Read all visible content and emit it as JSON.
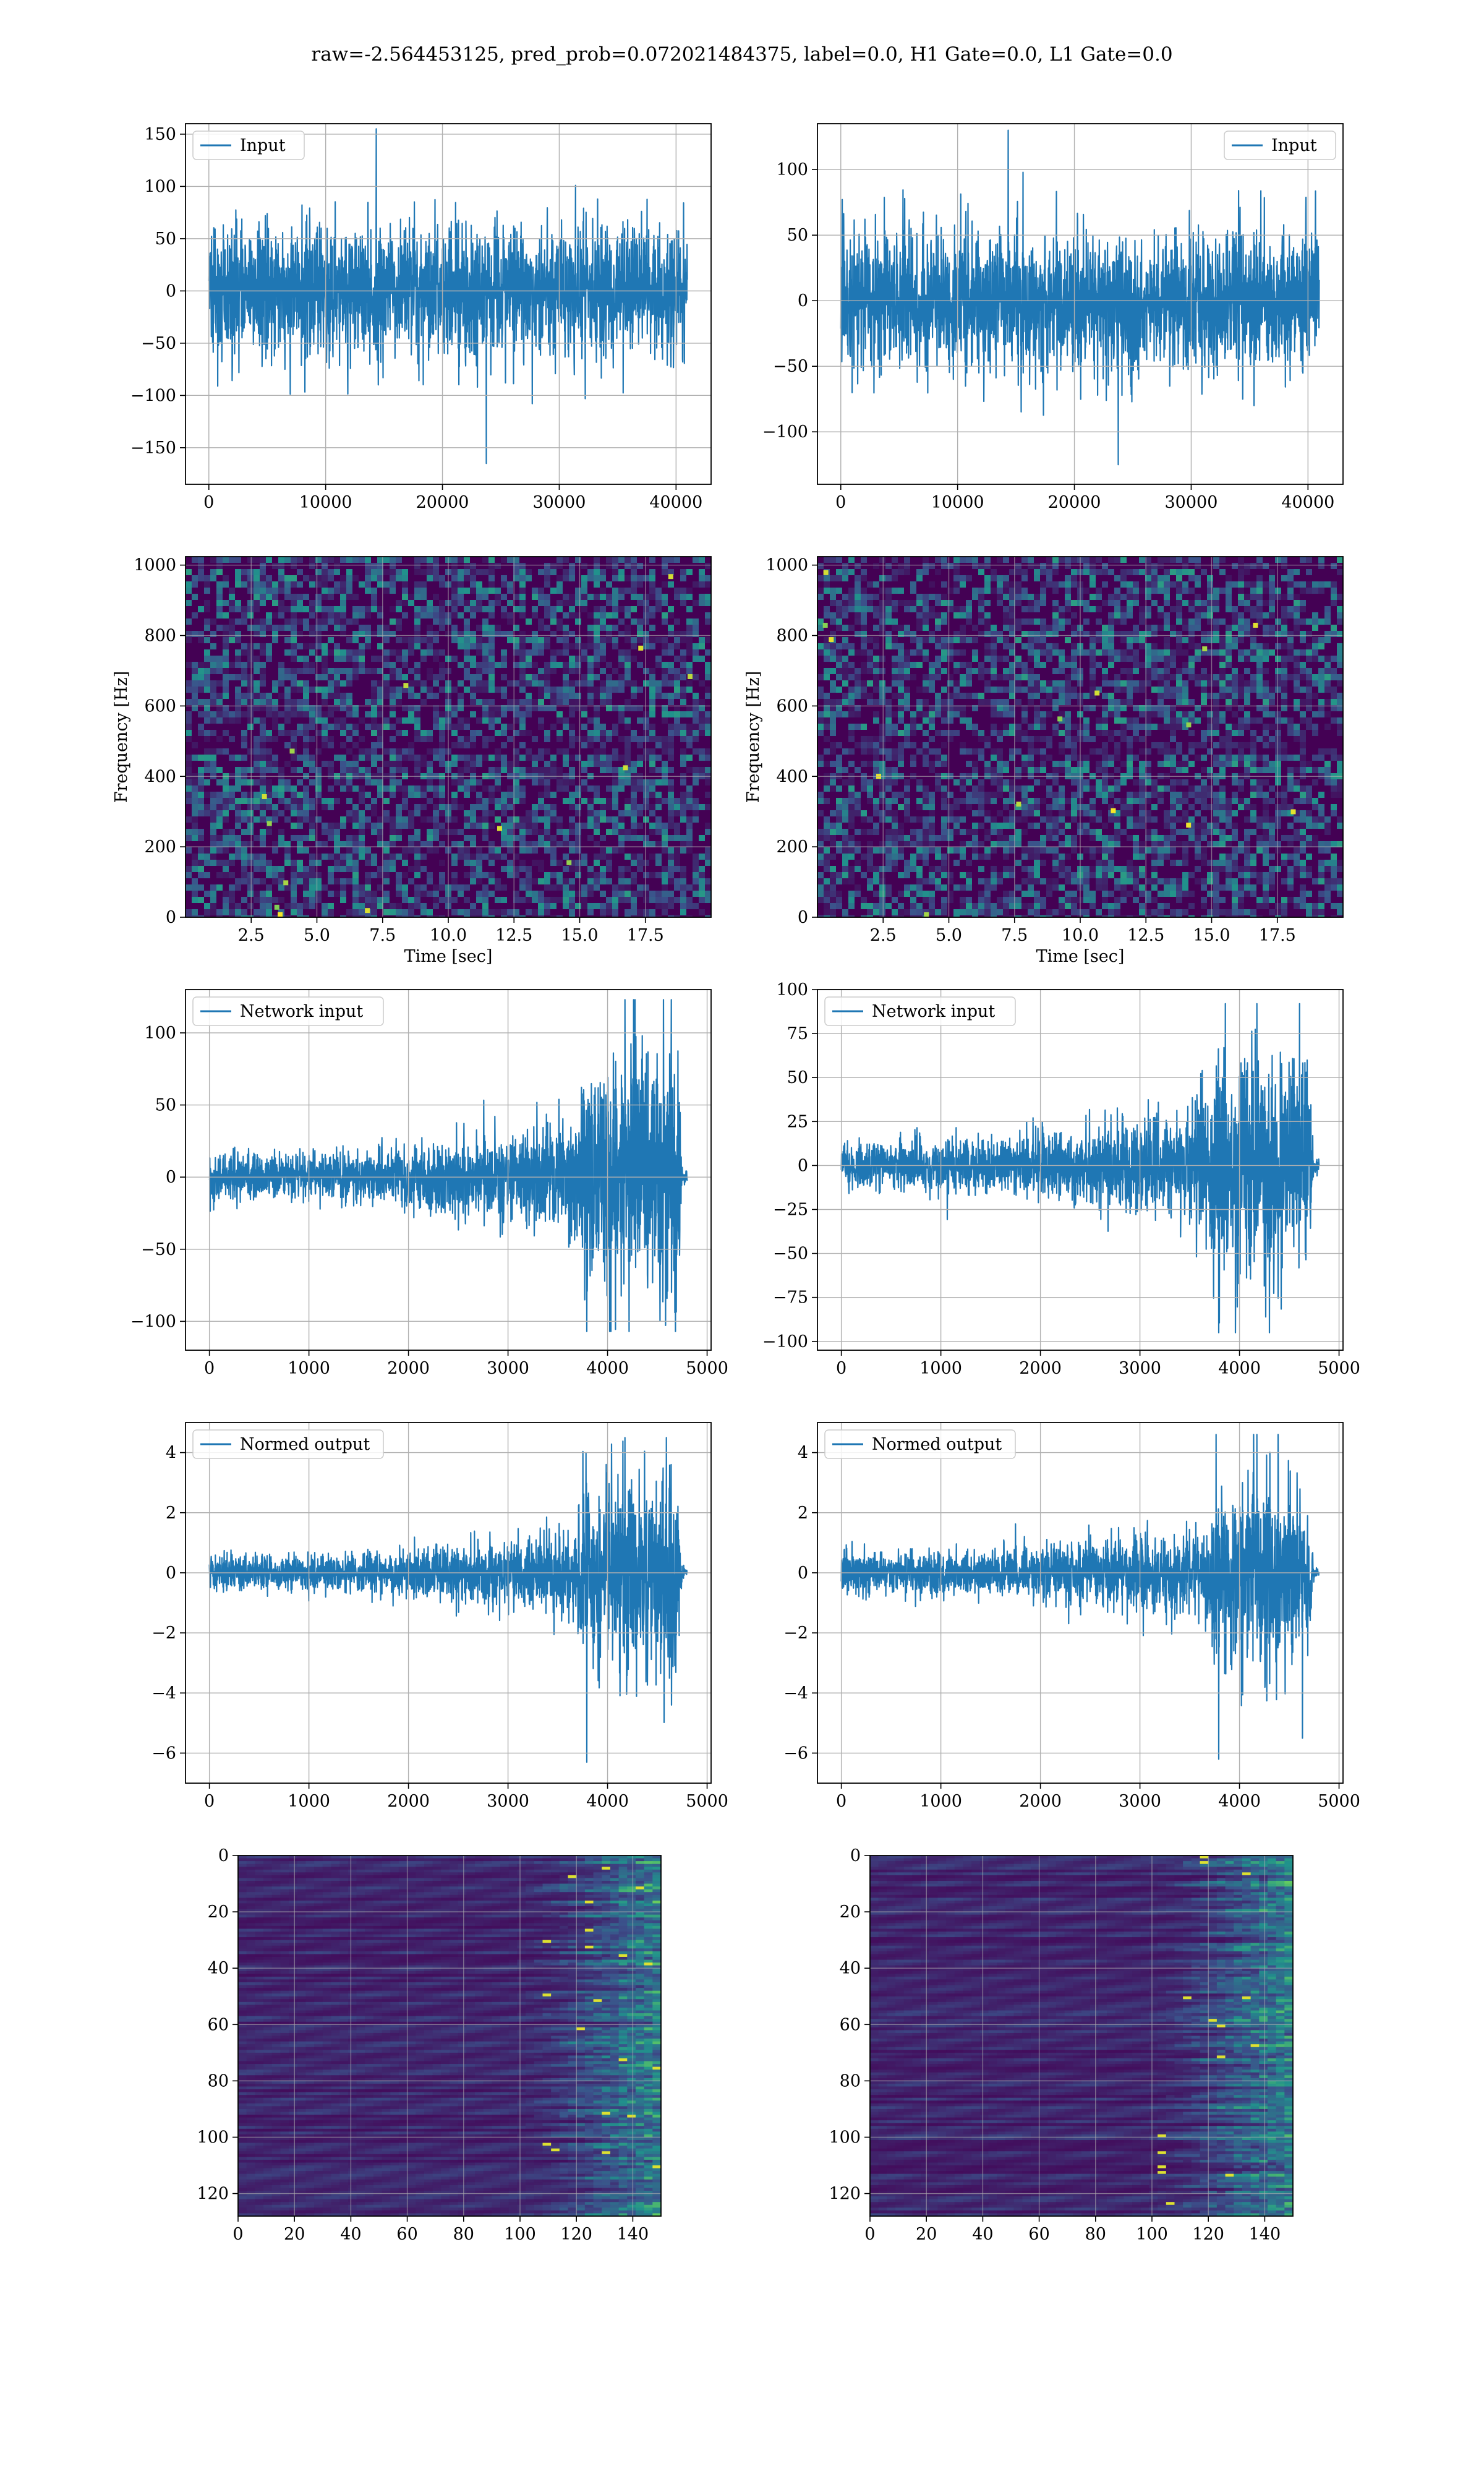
{
  "figure": {
    "title": "raw=-2.564453125, pred_prob=0.072021484375, label=0.0, H1 Gate=0.0, L1 Gate=0.0"
  },
  "colors": {
    "line": "#1f77b4",
    "grid": "#b0b0b0",
    "viridis_dark": "#440154",
    "viridis_mid": "#21918c",
    "viridis_bright": "#fde725"
  },
  "chart_data": [
    {
      "id": "input-h1",
      "type": "line",
      "row": 1,
      "col": 1,
      "legend": "Input",
      "legend_loc": "upper left",
      "xlim": [
        -2000,
        43000
      ],
      "ylim": [
        -185,
        160
      ],
      "xticks": [
        0,
        10000,
        20000,
        30000,
        40000
      ],
      "yticks": [
        -150,
        -100,
        -50,
        0,
        50,
        100,
        150
      ],
      "x_range": [
        0,
        40960
      ],
      "core_amplitude": 55,
      "peak_max": 155,
      "peak_min": -165,
      "grid": true
    },
    {
      "id": "input-l1",
      "type": "line",
      "row": 1,
      "col": 2,
      "legend": "Input",
      "legend_loc": "upper right",
      "xlim": [
        -2000,
        43000
      ],
      "ylim": [
        -140,
        135
      ],
      "xticks": [
        0,
        10000,
        20000,
        30000,
        40000
      ],
      "yticks": [
        -100,
        -50,
        0,
        50,
        100
      ],
      "x_range": [
        0,
        40960
      ],
      "core_amplitude": 45,
      "peak_max": 130,
      "peak_min": -125,
      "grid": true
    },
    {
      "id": "spectrogram-h1",
      "type": "heatmap",
      "row": 2,
      "col": 1,
      "xlabel": "Time [sec]",
      "ylabel": "Frequency [Hz]",
      "xlim": [
        0,
        20
      ],
      "ylim": [
        0,
        1024
      ],
      "xticks": [
        2.5,
        5.0,
        7.5,
        10.0,
        12.5,
        15.0,
        17.5
      ],
      "xticklabels": [
        "2.5",
        "5.0",
        "7.5",
        "10.0",
        "12.5",
        "15.0",
        "17.5"
      ],
      "yticks": [
        0,
        200,
        400,
        600,
        800,
        1000
      ],
      "colormap": "viridis",
      "grid": true
    },
    {
      "id": "spectrogram-l1",
      "type": "heatmap",
      "row": 2,
      "col": 2,
      "xlabel": "Time [sec]",
      "ylabel": "Frequency [Hz]",
      "xlim": [
        0,
        20
      ],
      "ylim": [
        0,
        1024
      ],
      "xticks": [
        2.5,
        5.0,
        7.5,
        10.0,
        12.5,
        15.0,
        17.5
      ],
      "xticklabels": [
        "2.5",
        "5.0",
        "7.5",
        "10.0",
        "12.5",
        "15.0",
        "17.5"
      ],
      "yticks": [
        0,
        200,
        400,
        600,
        800,
        1000
      ],
      "colormap": "viridis",
      "grid": true
    },
    {
      "id": "network-input-h1",
      "type": "line",
      "row": 3,
      "col": 1,
      "legend": "Network input",
      "legend_loc": "upper left",
      "xlim": [
        -240,
        5040
      ],
      "ylim": [
        -120,
        130
      ],
      "xticks": [
        0,
        1000,
        2000,
        3000,
        4000,
        5000
      ],
      "yticks": [
        -100,
        -50,
        0,
        50,
        100
      ],
      "envelope": [
        [
          0,
          14
        ],
        [
          1500,
          15
        ],
        [
          2500,
          22
        ],
        [
          3300,
          28
        ],
        [
          3650,
          40
        ],
        [
          3750,
          70
        ],
        [
          4300,
          80
        ],
        [
          4700,
          85
        ],
        [
          4750,
          5
        ],
        [
          4800,
          3
        ]
      ],
      "peak_max": 123,
      "peak_min": -107,
      "grid": true
    },
    {
      "id": "network-input-l1",
      "type": "line",
      "row": 3,
      "col": 2,
      "legend": "Network input",
      "legend_loc": "upper left",
      "xlim": [
        -240,
        5040
      ],
      "ylim": [
        -105,
        100
      ],
      "xticks": [
        0,
        1000,
        2000,
        3000,
        4000,
        5000
      ],
      "yticks": [
        -100,
        -75,
        -50,
        -25,
        0,
        25,
        50,
        75,
        100
      ],
      "envelope": [
        [
          0,
          12
        ],
        [
          1500,
          13
        ],
        [
          2500,
          20
        ],
        [
          3300,
          25
        ],
        [
          3700,
          32
        ],
        [
          3750,
          55
        ],
        [
          4300,
          60
        ],
        [
          4700,
          55
        ],
        [
          4750,
          4
        ],
        [
          4800,
          3
        ]
      ],
      "peak_max": 92,
      "peak_min": -95,
      "grid": true
    },
    {
      "id": "normed-output-h1",
      "type": "line",
      "row": 4,
      "col": 1,
      "legend": "Normed output",
      "legend_loc": "upper left",
      "xlim": [
        -240,
        5040
      ],
      "ylim": [
        -7,
        5
      ],
      "xticks": [
        0,
        1000,
        2000,
        3000,
        4000,
        5000
      ],
      "yticks": [
        -6,
        -4,
        -2,
        0,
        2,
        4
      ],
      "envelope": [
        [
          0,
          0.5
        ],
        [
          1500,
          0.55
        ],
        [
          2500,
          0.8
        ],
        [
          3300,
          1.0
        ],
        [
          3650,
          1.4
        ],
        [
          3750,
          2.6
        ],
        [
          4300,
          2.9
        ],
        [
          4700,
          3.1
        ],
        [
          4750,
          0.2
        ],
        [
          4800,
          0.15
        ]
      ],
      "peak_max": 4.5,
      "peak_min": -6.3,
      "grid": true
    },
    {
      "id": "normed-output-l1",
      "type": "line",
      "row": 4,
      "col": 2,
      "legend": "Normed output",
      "legend_loc": "upper left",
      "xlim": [
        -240,
        5040
      ],
      "ylim": [
        -7,
        5
      ],
      "xticks": [
        0,
        1000,
        2000,
        3000,
        4000,
        5000
      ],
      "yticks": [
        -6,
        -4,
        -2,
        0,
        2,
        4
      ],
      "envelope": [
        [
          0,
          0.6
        ],
        [
          1500,
          0.65
        ],
        [
          2500,
          0.9
        ],
        [
          3300,
          1.1
        ],
        [
          3700,
          1.4
        ],
        [
          3750,
          2.8
        ],
        [
          4300,
          3.0
        ],
        [
          4700,
          2.6
        ],
        [
          4750,
          0.2
        ],
        [
          4800,
          0.15
        ]
      ],
      "peak_max": 4.6,
      "peak_min": -6.2,
      "grid": true
    },
    {
      "id": "feature-map-h1",
      "type": "heatmap",
      "row": 5,
      "col": 1,
      "xlim": [
        0,
        150
      ],
      "ylim": [
        128,
        0
      ],
      "xticks": [
        0,
        20,
        40,
        60,
        80,
        100,
        120,
        140
      ],
      "yticks": [
        0,
        20,
        40,
        60,
        80,
        100,
        120
      ],
      "colormap": "viridis",
      "grid": true
    },
    {
      "id": "feature-map-l1",
      "type": "heatmap",
      "row": 5,
      "col": 2,
      "xlim": [
        0,
        150
      ],
      "ylim": [
        128,
        0
      ],
      "xticks": [
        0,
        20,
        40,
        60,
        80,
        100,
        120,
        140
      ],
      "yticks": [
        0,
        20,
        40,
        60,
        80,
        100,
        120
      ],
      "colormap": "viridis",
      "grid": true
    }
  ]
}
